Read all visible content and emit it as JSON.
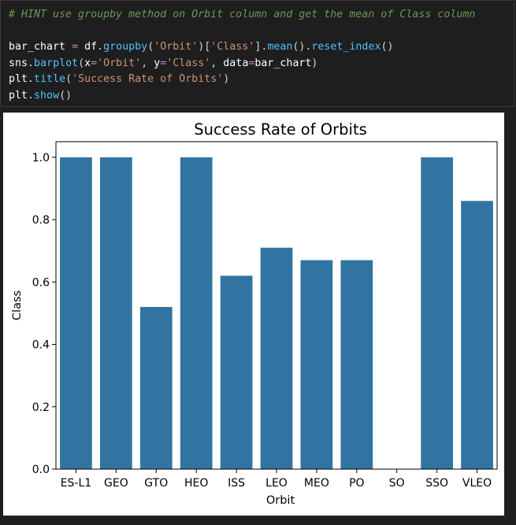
{
  "code_cell": {
    "comment": "# HINT use groupby method on Orbit column and get the mean of Class column",
    "line1": {
      "var": "bar_chart",
      "op": "=",
      "obj": "df",
      "fn1": "groupby",
      "arg1": "'Orbit'",
      "idx": "'Class'",
      "fn2": "mean",
      "fn3": "reset_index"
    },
    "line2": {
      "obj": "sns",
      "fn": "barplot",
      "k1": "x",
      "v1": "'Orbit'",
      "k2": "y",
      "v2": "'Class'",
      "k3": "data",
      "v3": "bar_chart"
    },
    "line3": {
      "obj": "plt",
      "fn": "title",
      "arg": "'Success Rate of Orbits'"
    },
    "line4": {
      "obj": "plt",
      "fn": "show"
    }
  },
  "chart_data": {
    "type": "bar",
    "title": "Success Rate of Orbits",
    "xlabel": "Orbit",
    "ylabel": "Class",
    "categories": [
      "ES-L1",
      "GEO",
      "GTO",
      "HEO",
      "ISS",
      "LEO",
      "MEO",
      "PO",
      "SO",
      "SSO",
      "VLEO"
    ],
    "values": [
      1.0,
      1.0,
      0.52,
      1.0,
      0.62,
      0.71,
      0.67,
      0.67,
      0.0,
      1.0,
      0.86
    ],
    "ylim": [
      0,
      1.05
    ],
    "yticks": [
      "0.0",
      "0.2",
      "0.4",
      "0.6",
      "0.8",
      "1.0"
    ],
    "bar_color": "#3274a1",
    "grid": false
  }
}
